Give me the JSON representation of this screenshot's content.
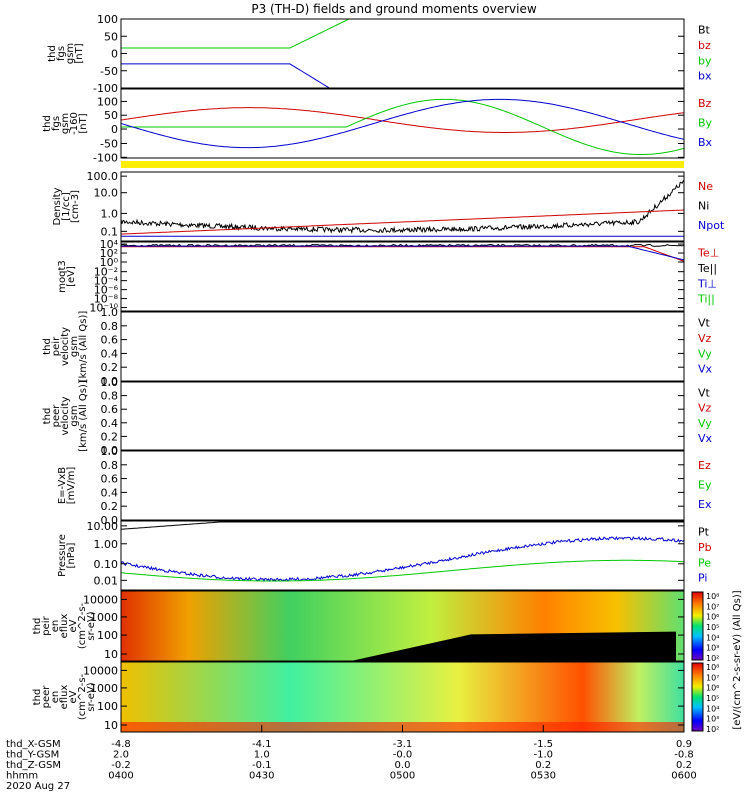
{
  "title": "P3 (TH-D) fields and ground moments overview",
  "colors": {
    "black": "#000000",
    "red": "#d00000",
    "green": "#00c800",
    "blue": "#0000d0",
    "yellow": "#ffee00"
  },
  "chart_data": {
    "type": "line",
    "x_ticks": {
      "x_gsm": [
        "-4.8",
        "-4.1",
        "-3.1",
        "-1.5",
        "0.9"
      ],
      "y_gsm": [
        "2.0",
        "1.0",
        "-0.0",
        "-1.0",
        "-0.8"
      ],
      "z_gsm": [
        "-0.2",
        "-0.1",
        "0.0",
        "0.2",
        "0.2"
      ],
      "hhmm": [
        "0400",
        "0430",
        "0500",
        "0530",
        "0600"
      ]
    },
    "x_tick_times": [
      0,
      30,
      60,
      90,
      120
    ],
    "x_row_labels": [
      "thd_X-GSM",
      "thd_Y-GSM",
      "thd_Z-GSM",
      "hhmm"
    ],
    "date": "2020 Aug 27",
    "panels": [
      {
        "id": "fgs_gsm",
        "ylabel": [
          "thd",
          "fgs",
          "gsm",
          "[nT]"
        ],
        "yticks": [
          "100",
          "50",
          "0",
          "-50",
          "-100"
        ],
        "legend": [
          {
            "text": "Bt",
            "color": "black"
          },
          {
            "text": "bz",
            "color": "red"
          },
          {
            "text": "by",
            "color": "green"
          },
          {
            "text": "bx",
            "color": "blue"
          }
        ]
      },
      {
        "id": "fgs_gsm_lim",
        "ylabel": [
          "thd",
          "fgs",
          "gsm",
          "-160",
          "[nT]"
        ],
        "yticks": [
          "100",
          "50",
          "0",
          "-50",
          "-100"
        ],
        "legend": [
          {
            "text": "Bz",
            "color": "red"
          },
          {
            "text": "By",
            "color": "green"
          },
          {
            "text": "Bx",
            "color": "blue"
          }
        ]
      },
      {
        "id": "density",
        "ylabel": [
          "Density",
          "[1/cc]",
          "[cm-3]"
        ],
        "yticks": [
          "100.0",
          "10.0",
          "1.0",
          "0.1"
        ],
        "legend": [
          {
            "text": "Ne",
            "color": "red"
          },
          {
            "text": "Ni",
            "color": "black"
          },
          {
            "text": "Npot",
            "color": "blue"
          }
        ]
      },
      {
        "id": "temp",
        "ylabel": [
          "moqt3",
          "[eV]"
        ],
        "yticks": [
          "10⁴",
          "10²",
          "10⁰",
          "10⁻²",
          "10⁻⁴",
          "10⁻⁶",
          "10⁻⁸",
          "10⁻¹⁰"
        ],
        "legend": [
          {
            "text": "Te⊥",
            "color": "red"
          },
          {
            "text": "Te||",
            "color": "black"
          },
          {
            "text": "Ti⊥",
            "color": "blue"
          },
          {
            "text": "Ti||",
            "color": "green"
          }
        ]
      },
      {
        "id": "peir_vel",
        "ylabel": [
          "thd",
          "peir",
          "velocity",
          "gsm",
          "[km/s (All Qs)]"
        ],
        "yticks": [
          "1.0",
          "0.8",
          "0.6",
          "0.4",
          "0.2",
          "0.0"
        ],
        "legend": [
          {
            "text": "Vt",
            "color": "black"
          },
          {
            "text": "Vz",
            "color": "red"
          },
          {
            "text": "Vy",
            "color": "green"
          },
          {
            "text": "Vx",
            "color": "blue"
          }
        ]
      },
      {
        "id": "peer_vel",
        "ylabel": [
          "thd",
          "peer",
          "velocity",
          "gsm",
          "[km/s (All Qs)]"
        ],
        "yticks": [
          "1.0",
          "0.8",
          "0.6",
          "0.4",
          "0.2",
          "0.0"
        ],
        "legend": [
          {
            "text": "Vt",
            "color": "black"
          },
          {
            "text": "Vz",
            "color": "red"
          },
          {
            "text": "Vy",
            "color": "green"
          },
          {
            "text": "Vx",
            "color": "blue"
          }
        ]
      },
      {
        "id": "efield",
        "ylabel": [
          "E=-VxB",
          "[mV/m]"
        ],
        "yticks": [
          "1.0",
          "0.8",
          "0.6",
          "0.4",
          "0.2",
          "0.0"
        ],
        "legend": [
          {
            "text": "Ez",
            "color": "red"
          },
          {
            "text": "Ey",
            "color": "green"
          },
          {
            "text": "Ex",
            "color": "blue"
          }
        ]
      },
      {
        "id": "pressure",
        "ylabel": [
          "Pressure",
          "[nPa]"
        ],
        "yticks": [
          "10.00",
          "1.00",
          "0.10",
          "0.01"
        ],
        "legend": [
          {
            "text": "Pt",
            "color": "black"
          },
          {
            "text": "Pb",
            "color": "red"
          },
          {
            "text": "Pe",
            "color": "green"
          },
          {
            "text": "Pi",
            "color": "blue"
          }
        ]
      },
      {
        "id": "peir_eflux",
        "ylabel": [
          "thd",
          "peir",
          "en",
          "eflux",
          "eV",
          "(cm^2-s-",
          "sr-eV)"
        ],
        "yticks": [
          "10000",
          "1000",
          "100",
          "10"
        ]
      },
      {
        "id": "peer_eflux",
        "ylabel": [
          "thd",
          "peer",
          "en",
          "eflux",
          "eV",
          "(cm^2-s-",
          "sr-eV)"
        ],
        "yticks": [
          "10000",
          "1000",
          "100",
          "10"
        ]
      }
    ],
    "colorbar": {
      "label": "[eV/(cm^2-s-sr-eV) (All Qs)]",
      "ticks_top": [
        "10⁸",
        "10⁷",
        "10⁶",
        "10⁵",
        "10⁴",
        "10³",
        "10²"
      ],
      "ticks_bottom": [
        "10⁸",
        "10⁷",
        "10⁶",
        "10⁵",
        "10⁴",
        "10³",
        "10²"
      ]
    }
  }
}
